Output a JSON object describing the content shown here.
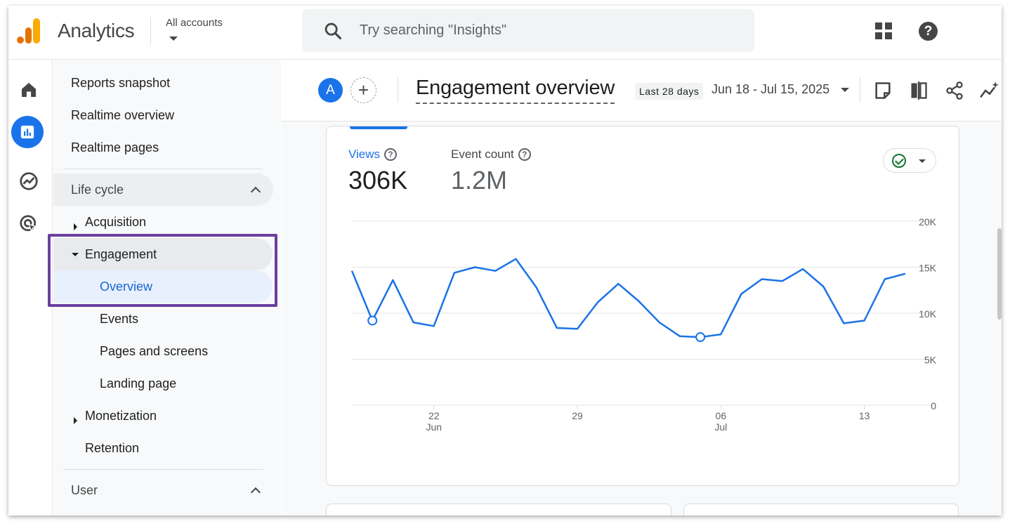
{
  "app": {
    "title": "Analytics",
    "account_label": "All accounts"
  },
  "search": {
    "placeholder": "Try searching \"Insights\""
  },
  "topbar_icons": [
    "apps-grid-icon",
    "help-icon"
  ],
  "rail": [
    "home-icon",
    "reports-icon",
    "explore-icon",
    "advertising-icon"
  ],
  "sidebar": {
    "top_items": [
      "Reports snapshot",
      "Realtime overview",
      "Realtime pages"
    ],
    "lifecycle": {
      "label": "Life cycle",
      "groups": {
        "acquisition": "Acquisition",
        "engagement": "Engagement",
        "engagement_children": [
          "Overview",
          "Events",
          "Pages and screens",
          "Landing page"
        ],
        "monetization": "Monetization",
        "retention": "Retention"
      }
    },
    "user_section": {
      "label": "User"
    }
  },
  "header": {
    "avatar_letter": "A",
    "add_label": "+",
    "page_title": "Engagement overview",
    "range_chip": "Last 28 days",
    "date_range": "Jun 18 - Jul 15, 2025",
    "icons": [
      "notes-icon",
      "compare-icon",
      "share-icon",
      "insights-icon"
    ]
  },
  "card": {
    "metrics": [
      {
        "label": "Views",
        "value": "306K"
      },
      {
        "label": "Event count",
        "value": "1.2M"
      }
    ]
  },
  "colors": {
    "accent": "#1a73e8",
    "selected_bg": "#e8f0fe",
    "highlight_border": "#6b3fa0"
  },
  "chart_data": {
    "type": "line",
    "series": [
      {
        "name": "Views",
        "values": [
          14600,
          9200,
          13600,
          9000,
          8600,
          14400,
          15000,
          14600,
          15900,
          12800,
          8400,
          8300,
          11200,
          13200,
          11300,
          9000,
          7500,
          7400,
          7700,
          12100,
          13700,
          13500,
          14800,
          12900,
          8900,
          9200,
          13700,
          14300
        ]
      }
    ],
    "x_ticks": [
      {
        "day": "22",
        "month": "Jun"
      },
      {
        "day": "29",
        "month": ""
      },
      {
        "day": "06",
        "month": "Jul"
      },
      {
        "day": "13",
        "month": ""
      }
    ],
    "y_ticks": [
      "20K",
      "15K",
      "10K",
      "5K",
      "0"
    ],
    "ylim": [
      0,
      20000
    ],
    "grid": true
  }
}
